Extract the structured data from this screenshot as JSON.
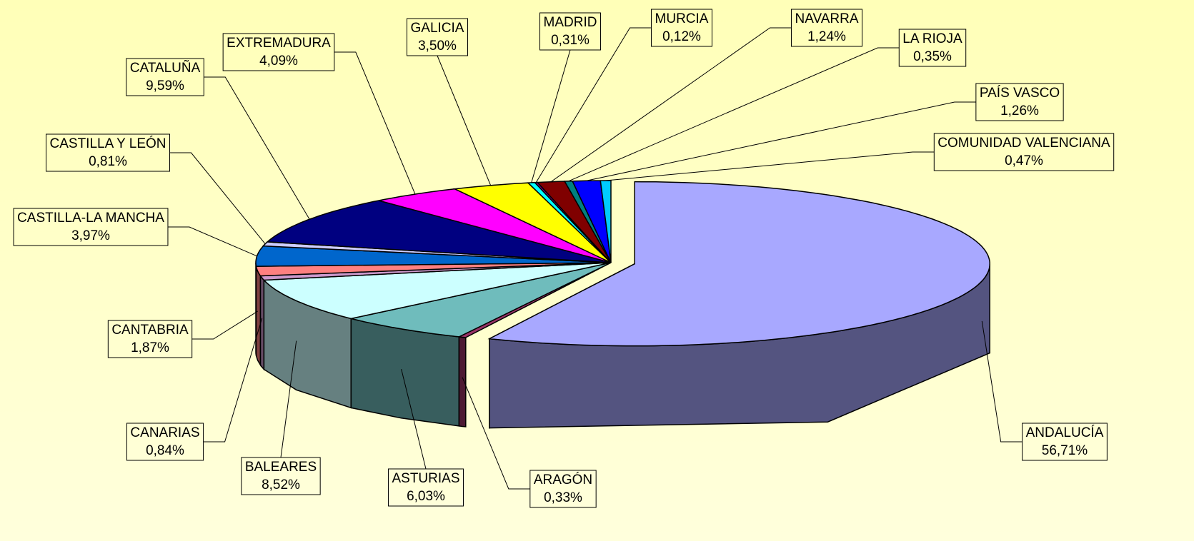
{
  "chart_data": {
    "type": "pie",
    "categories": [
      "ANDALUCÍA",
      "ARAGÓN",
      "ASTURIAS",
      "BALEARES",
      "CANARIAS",
      "CANTABRIA",
      "CASTILLA-LA MANCHA",
      "CASTILLA Y LEÓN",
      "CATALUÑA",
      "EXTREMADURA",
      "GALICIA",
      "MADRID",
      "MURCIA",
      "NAVARRA",
      "LA RIOJA",
      "PAÍS VASCO",
      "COMUNIDAD VALENCIANA"
    ],
    "values": [
      56.71,
      0.33,
      6.03,
      8.52,
      0.84,
      1.87,
      3.97,
      0.81,
      9.59,
      4.09,
      3.5,
      0.31,
      0.12,
      1.24,
      0.35,
      1.26,
      0.47
    ],
    "value_labels": [
      "56,71%",
      "0,33%",
      "6,03%",
      "8,52%",
      "0,84%",
      "1,87%",
      "3,97%",
      "0,81%",
      "9,59%",
      "4,09%",
      "3,50%",
      "0,31%",
      "0,12%",
      "1,24%",
      "0,35%",
      "1,26%",
      "0,47%"
    ],
    "colors": [
      "#a8a8ff",
      "#993366",
      "#6fbcbc",
      "#ccffff",
      "#cc99cc",
      "#ff8080",
      "#0066cc",
      "#ccccff",
      "#000080",
      "#ff00ff",
      "#ffff00",
      "#00ffff",
      "#800080",
      "#800000",
      "#008080",
      "#0000ff",
      "#00ccff"
    ]
  }
}
